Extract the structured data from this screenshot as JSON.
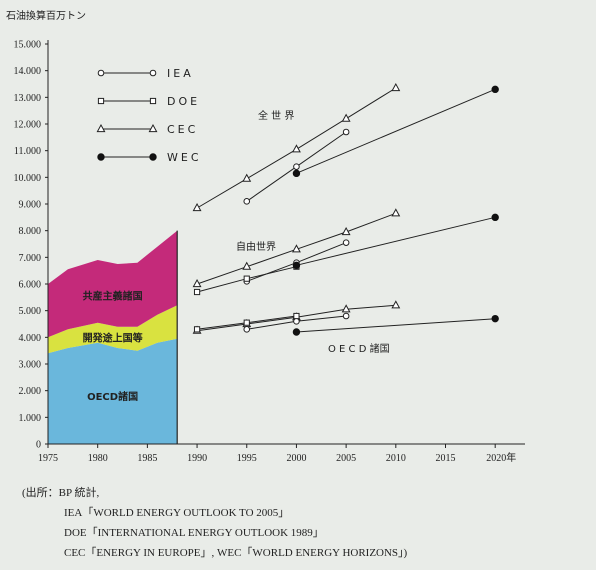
{
  "chart_data": {
    "type": "line",
    "ylabel": "石油換算百万トン",
    "xlim": [
      1975,
      2023
    ],
    "ylim": [
      0,
      15000
    ],
    "y_ticks": [
      "0",
      "1.000",
      "2.000",
      "3.000",
      "4.000",
      "5.000",
      "6.000",
      "7.000",
      "8.000",
      "9.000",
      "10.000",
      "11.000",
      "12.000",
      "13.000",
      "14.000",
      "15.000"
    ],
    "y_tick_values": [
      0,
      1000,
      2000,
      3000,
      4000,
      5000,
      6000,
      7000,
      8000,
      9000,
      10000,
      11000,
      12000,
      13000,
      14000,
      15000
    ],
    "x_ticks": [
      "1975",
      "1980",
      "1985",
      "1990",
      "1995",
      "2000",
      "2005",
      "2010",
      "2015",
      "2020年"
    ],
    "x_tick_values": [
      1975,
      1980,
      1985,
      1990,
      1995,
      2000,
      2005,
      2010,
      2015,
      2020
    ],
    "legend": [
      {
        "name": "IEA",
        "marker": "circle-open"
      },
      {
        "name": "DOE",
        "marker": "square-open"
      },
      {
        "name": "CEC",
        "marker": "triangle-open"
      },
      {
        "name": "WEC",
        "marker": "circle-filled"
      }
    ],
    "historical": {
      "x": [
        1975,
        1977,
        1980,
        1982,
        1984,
        1986,
        1988
      ],
      "layers": [
        {
          "name": "OECD諸国",
          "color": "#6ab7dc",
          "values": [
            3400,
            3600,
            3800,
            3600,
            3500,
            3800,
            3950
          ]
        },
        {
          "name": "開発途上国等",
          "color": "#d9e240",
          "values": [
            600,
            700,
            750,
            800,
            900,
            1050,
            1250
          ]
        },
        {
          "name": "共産主義諸国",
          "color": "#c42a7a",
          "values": [
            2000,
            2250,
            2350,
            2350,
            2400,
            2550,
            2800
          ]
        }
      ]
    },
    "group_labels": {
      "world": "全 世 界",
      "free": "自由世界",
      "oecd": "O E C D 諸国"
    },
    "series": [
      {
        "name": "CEC",
        "marker": "triangle-open",
        "group": "world",
        "x": [
          1990,
          1995,
          2000,
          2005,
          2010
        ],
        "values": [
          8850,
          9950,
          11050,
          12200,
          13350
        ]
      },
      {
        "name": "IEA",
        "marker": "circle-open",
        "group": "world",
        "x": [
          1995,
          2000,
          2005
        ],
        "values": [
          9100,
          10400,
          11700
        ]
      },
      {
        "name": "WEC",
        "marker": "circle-filled",
        "group": "world",
        "x": [
          2000,
          2020
        ],
        "values": [
          10150,
          13300
        ]
      },
      {
        "name": "CEC",
        "marker": "triangle-open",
        "group": "free",
        "x": [
          1990,
          1995,
          2000,
          2005,
          2010
        ],
        "values": [
          6000,
          6650,
          7300,
          7950,
          8650
        ]
      },
      {
        "name": "IEA",
        "marker": "circle-open",
        "group": "free",
        "x": [
          1995,
          2000,
          2005
        ],
        "values": [
          6100,
          6800,
          7550
        ]
      },
      {
        "name": "DOE",
        "marker": "square-open",
        "group": "free",
        "x": [
          1990,
          1995,
          2000
        ],
        "values": [
          5700,
          6200,
          6650
        ]
      },
      {
        "name": "WEC",
        "marker": "circle-filled",
        "group": "free",
        "x": [
          2000,
          2020
        ],
        "values": [
          6700,
          8500
        ]
      },
      {
        "name": "CEC",
        "marker": "triangle-open",
        "group": "oecd",
        "x": [
          1990,
          1995,
          2000,
          2005,
          2010
        ],
        "values": [
          4250,
          4500,
          4750,
          5050,
          5200
        ]
      },
      {
        "name": "IEA",
        "marker": "circle-open",
        "group": "oecd",
        "x": [
          1995,
          2000,
          2005
        ],
        "values": [
          4300,
          4600,
          4800
        ]
      },
      {
        "name": "DOE",
        "marker": "square-open",
        "group": "oecd",
        "x": [
          1990,
          1995,
          2000
        ],
        "values": [
          4300,
          4550,
          4800
        ]
      },
      {
        "name": "WEC",
        "marker": "circle-filled",
        "group": "oecd",
        "x": [
          2000,
          2020
        ],
        "values": [
          4200,
          4700
        ]
      }
    ]
  },
  "source": {
    "line1": "(出所：BP 統計,",
    "line2": "IEA「WORLD ENERGY OUTLOOK TO 2005」",
    "line3": "DOE「INTERNATIONAL ENERGY OUTLOOK 1989」",
    "line4": "CEC「ENERGY IN EUROPE」, WEC「WORLD ENERGY HORIZONS」)"
  }
}
